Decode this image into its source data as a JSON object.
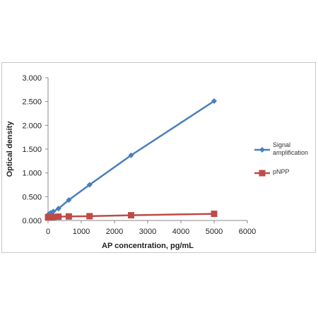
{
  "chart_data": {
    "type": "line",
    "xlabel": "AP concentration, pg/mL",
    "ylabel": "Optical density",
    "xlim": [
      0,
      6000
    ],
    "ylim": [
      0,
      3
    ],
    "x_ticks": [
      "0",
      "1000",
      "2000",
      "3000",
      "4000",
      "5000",
      "6000"
    ],
    "y_ticks": [
      "0.000",
      "0.500",
      "1.000",
      "1.500",
      "2.000",
      "2.500",
      "3.000"
    ],
    "grid": false,
    "legend_position": "right",
    "series": [
      {
        "name": "Signal amplification",
        "legend_lines": [
          "Signal",
          "amplification"
        ],
        "color": "#4a7ebb",
        "marker": "diamond",
        "x": [
          0,
          39,
          78,
          156,
          313,
          625,
          1250,
          2500,
          5000
        ],
        "y": [
          0.12,
          0.14,
          0.16,
          0.19,
          0.25,
          0.43,
          0.75,
          1.37,
          2.51
        ]
      },
      {
        "name": "pNPP",
        "legend_lines": [
          "pNPP"
        ],
        "color": "#be4b48",
        "marker": "square",
        "x": [
          0,
          39,
          78,
          156,
          313,
          625,
          1250,
          2500,
          5000
        ],
        "y": [
          0.07,
          0.07,
          0.07,
          0.075,
          0.08,
          0.085,
          0.09,
          0.11,
          0.14
        ]
      }
    ]
  }
}
